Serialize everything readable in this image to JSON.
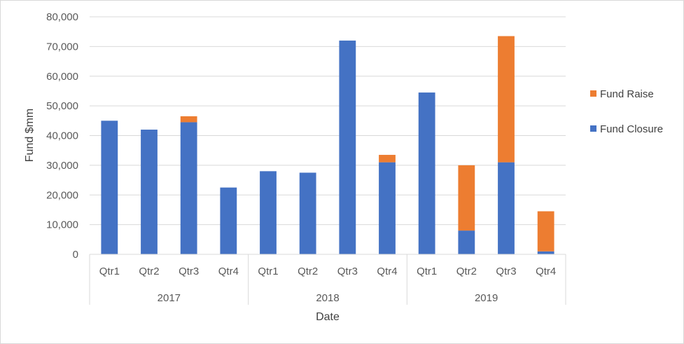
{
  "chart_data": {
    "type": "bar",
    "stacked": true,
    "title": "",
    "xlabel": "Date",
    "ylabel": "Fund $mm",
    "ylim": [
      0,
      80000
    ],
    "yticks": [
      "0",
      "10,000",
      "20,000",
      "30,000",
      "40,000",
      "50,000",
      "60,000",
      "70,000",
      "80,000"
    ],
    "ytick_values": [
      0,
      10000,
      20000,
      30000,
      40000,
      50000,
      60000,
      70000,
      80000
    ],
    "grid": true,
    "legend_position": "right",
    "groups": [
      {
        "label": "2017",
        "categories": [
          "Qtr1",
          "Qtr2",
          "Qtr3",
          "Qtr4"
        ]
      },
      {
        "label": "2018",
        "categories": [
          "Qtr1",
          "Qtr2",
          "Qtr3",
          "Qtr4"
        ]
      },
      {
        "label": "2019",
        "categories": [
          "Qtr1",
          "Qtr2",
          "Qtr3",
          "Qtr4"
        ]
      }
    ],
    "series": [
      {
        "name": "Fund Closure",
        "color": "#4472c4",
        "values": [
          45000,
          42000,
          44500,
          22500,
          28000,
          27500,
          72000,
          31000,
          54500,
          8000,
          31000,
          1000
        ]
      },
      {
        "name": "Fund Raise",
        "color": "#ed7d31",
        "values": [
          0,
          0,
          2000,
          0,
          0,
          0,
          0,
          2500,
          0,
          22000,
          42500,
          13500
        ]
      }
    ],
    "legend_order": [
      "Fund Raise",
      "Fund Closure"
    ]
  }
}
